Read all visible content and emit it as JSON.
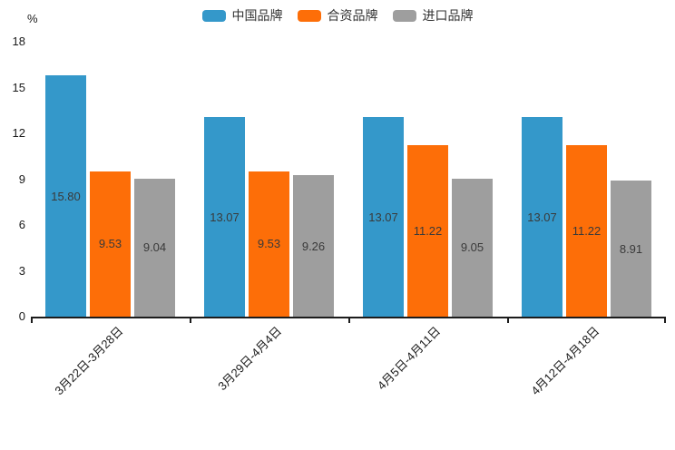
{
  "chart_data": {
    "type": "bar",
    "title": "",
    "unit_label": "%",
    "xlabel": "",
    "ylabel": "%",
    "ylim": [
      0,
      18
    ],
    "yticks": [
      0,
      3,
      6,
      9,
      12,
      15,
      18
    ],
    "grid": false,
    "legend_position": "top",
    "categories": [
      "3月22日-3月28日",
      "3月29日-4月4日",
      "4月5日-4月11日",
      "4月12日-4月18日"
    ],
    "series": [
      {
        "name": "中国品牌",
        "color": "#3498ca",
        "values": [
          15.8,
          13.07,
          13.07,
          13.07
        ],
        "labels": [
          "15.80",
          "13.07",
          "13.07",
          "13.07"
        ]
      },
      {
        "name": "合资品牌",
        "color": "#fd6e08",
        "values": [
          9.53,
          9.53,
          11.22,
          11.22
        ],
        "labels": [
          "9.53",
          "9.53",
          "11.22",
          "11.22"
        ]
      },
      {
        "name": "进口品牌",
        "color": "#9e9e9e",
        "values": [
          9.04,
          9.26,
          9.05,
          8.91
        ],
        "labels": [
          "9.04",
          "9.26",
          "9.05",
          "8.91"
        ]
      }
    ]
  }
}
